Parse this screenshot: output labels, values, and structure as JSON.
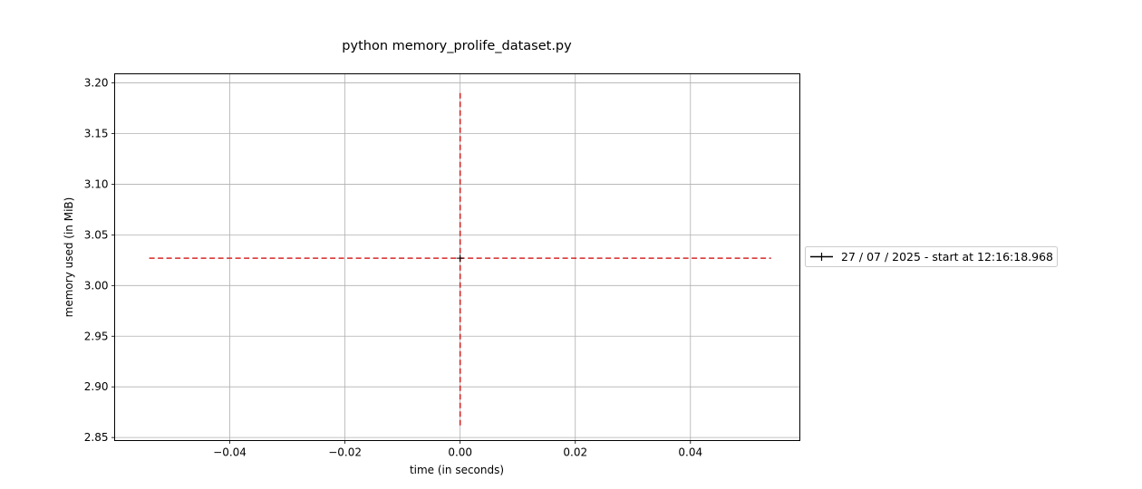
{
  "chart_data": {
    "type": "line",
    "title": "python memory_prolife_dataset.py",
    "xlabel": "time (in seconds)",
    "ylabel": "memory used (in MiB)",
    "xlim": [
      -0.06,
      0.059
    ],
    "ylim": [
      2.847,
      3.209
    ],
    "xticks": [
      -0.04,
      -0.02,
      0.0,
      0.02,
      0.04
    ],
    "xtick_labels": [
      "−0.04",
      "−0.02",
      "0.00",
      "0.02",
      "0.04"
    ],
    "yticks": [
      2.85,
      2.9,
      2.95,
      3.0,
      3.05,
      3.1,
      3.15,
      3.2
    ],
    "ytick_labels": [
      "2.85",
      "2.90",
      "2.95",
      "3.00",
      "3.05",
      "3.10",
      "3.15",
      "3.20"
    ],
    "grid": true,
    "legend_position": "right, outside plot",
    "series": [
      {
        "name": "27 / 07 / 2025 - start at 12:16:18.968",
        "color": "#000000",
        "marker": "+",
        "x": [
          0.0
        ],
        "y": [
          3.027
        ]
      }
    ],
    "annotations": [
      {
        "kind": "horizontal-dashed",
        "color": "#d62728",
        "y": 3.027,
        "x_from": -0.054,
        "x_to": 0.054
      },
      {
        "kind": "vertical-dashed",
        "color": "#d62728",
        "x": 0.0,
        "y_from": 2.862,
        "y_to": 3.192
      }
    ]
  }
}
